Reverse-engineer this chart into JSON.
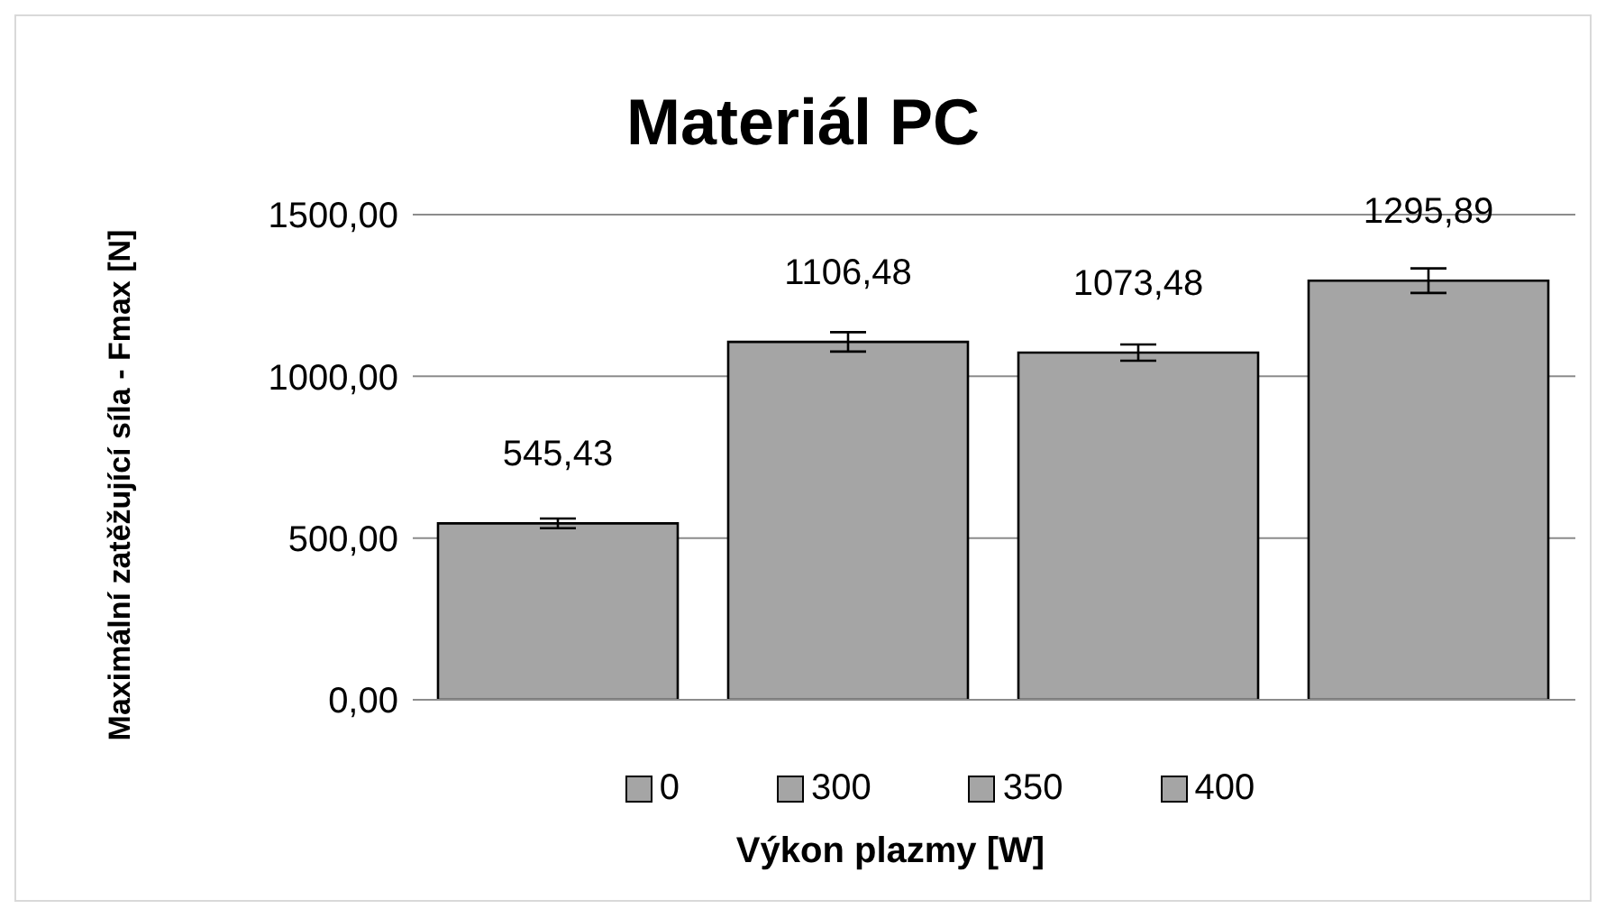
{
  "chart_data": {
    "type": "bar",
    "title": "Materiál PC",
    "xlabel": "Výkon plazmy [W]",
    "ylabel": "Maximální zatěžující síla - Fmax [N]",
    "categories": [
      null
    ],
    "series": [
      {
        "name": "0",
        "color": "#a5a5a5",
        "values": [
          545.43
        ],
        "errors": [
          15
        ],
        "value_labels": [
          "545,43"
        ]
      },
      {
        "name": "300",
        "color": "#a5a5a5",
        "values": [
          1106.48
        ],
        "errors": [
          30
        ],
        "value_labels": [
          "1106,48"
        ]
      },
      {
        "name": "350",
        "color": "#a5a5a5",
        "values": [
          1073.48
        ],
        "errors": [
          25
        ],
        "value_labels": [
          "1073,48"
        ]
      },
      {
        "name": "400",
        "color": "#a5a5a5",
        "values": [
          1295.89
        ],
        "errors": [
          38
        ],
        "value_labels": [
          "1295,89"
        ]
      }
    ],
    "ylim": [
      0,
      1500
    ],
    "yticks": [
      {
        "value": 0,
        "label": "0,00"
      },
      {
        "value": 500,
        "label": "500,00"
      },
      {
        "value": 1000,
        "label": "1000,00"
      },
      {
        "value": 1500,
        "label": "1500,00"
      }
    ],
    "grid": "y",
    "legend": "bottom"
  }
}
